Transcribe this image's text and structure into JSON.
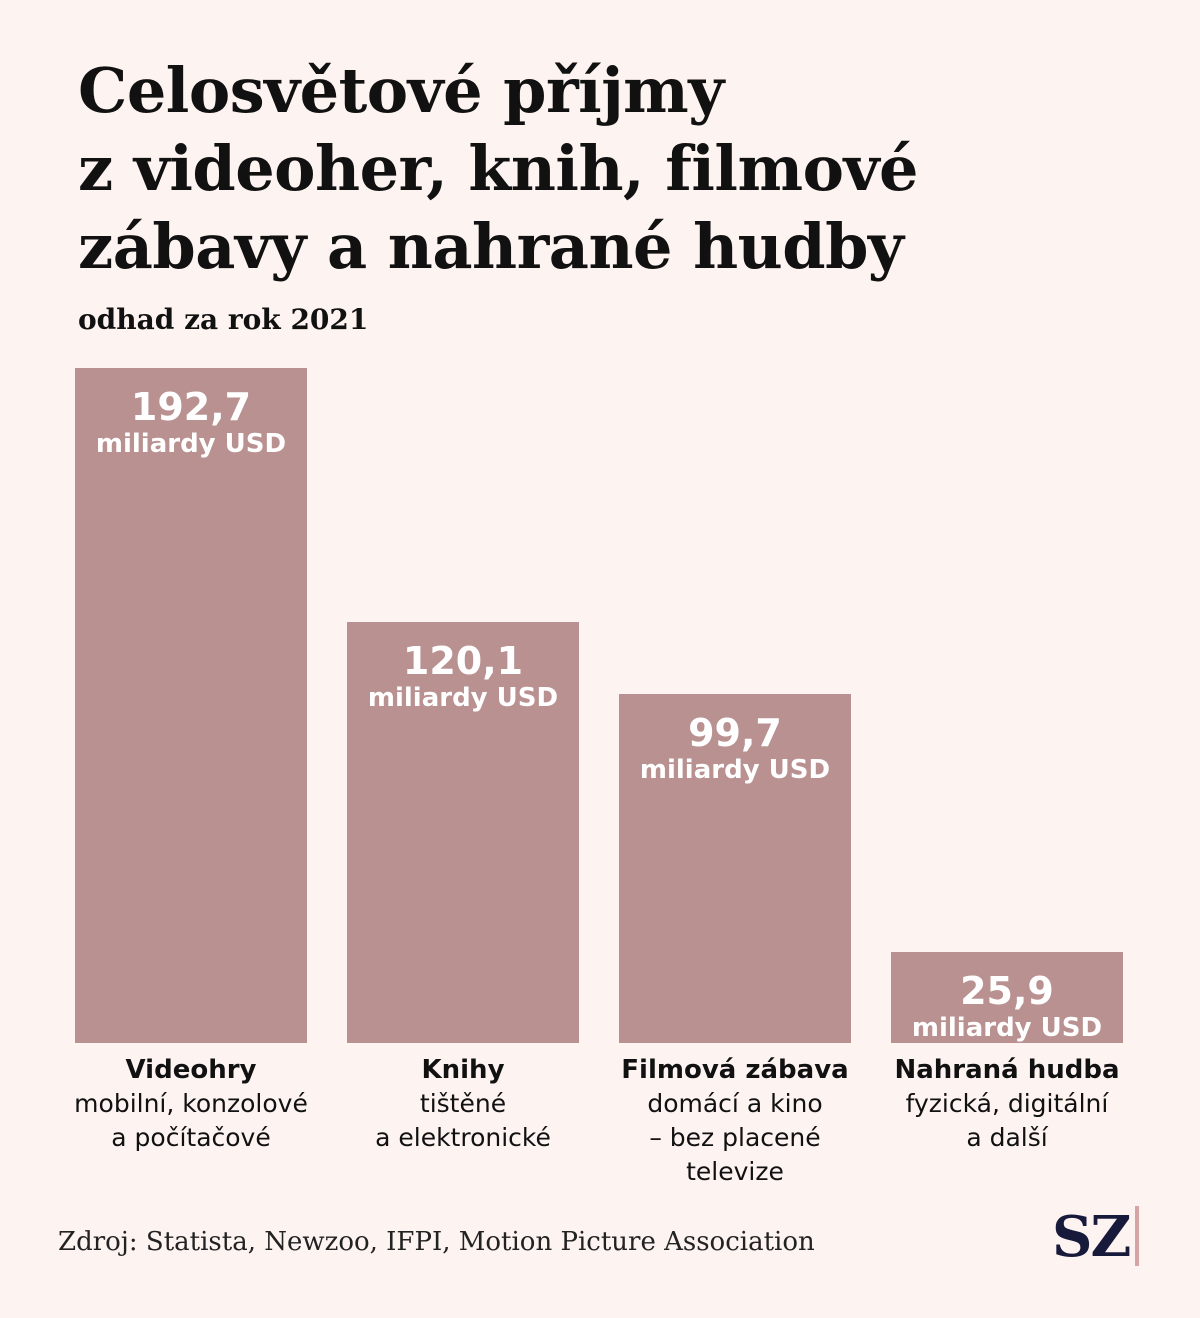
{
  "title": {
    "line1": "Celosvětové příjmy",
    "line2": "z videoher, knih, filmové",
    "line3": "zábavy a nahrané hudby"
  },
  "subtitle": "odhad za rok 2021",
  "colors": {
    "background": "#fdf3f1",
    "bar": "#b99191",
    "bar_label": "#ffffff",
    "logo": "#171a3a",
    "logo_accent": "#d6a4a4"
  },
  "chart_data": {
    "type": "bar",
    "ylim": [
      0,
      192.7
    ],
    "grid": false,
    "categories": [
      "Videohry",
      "Knihy",
      "Filmová zábava",
      "Nahraná hudba"
    ],
    "values": [
      192.7,
      120.1,
      99.7,
      25.9
    ],
    "value_labels": [
      "192,7",
      "120,1",
      "99,7",
      "25,9"
    ],
    "unit_label": "miliardy USD",
    "descriptions": [
      [
        "mobilní, konzolové",
        "a počítačové"
      ],
      [
        "tištěné",
        "a elektronické"
      ],
      [
        "domácí a kino",
        "– bez placené",
        "televize"
      ],
      [
        "fyzická, digitální",
        "a další"
      ]
    ]
  },
  "source": "Zdroj: Statista, Newzoo, IFPI, Motion Picture Association",
  "logo": "SZ"
}
